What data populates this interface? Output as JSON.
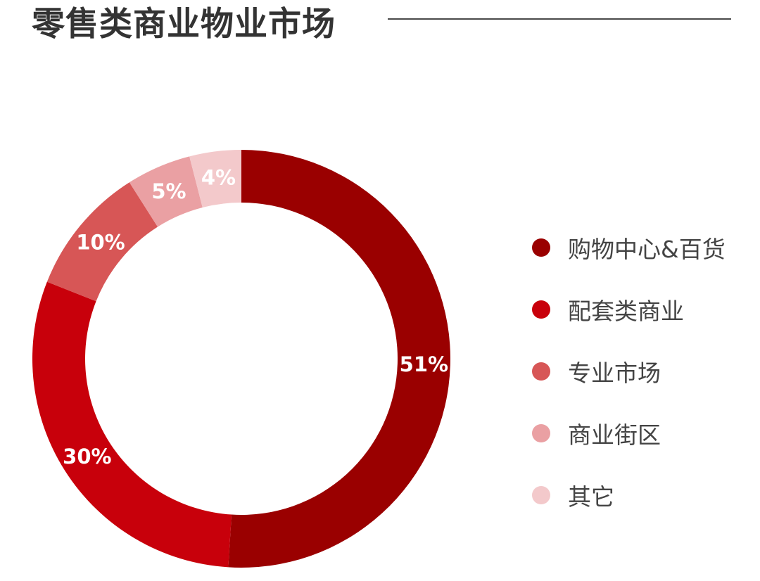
{
  "title": "零售类商业物业市场",
  "chart_data": {
    "type": "pie",
    "categories": [
      "购物中心&百货",
      "配套类商业",
      "专业市场",
      "商业街区",
      "其它"
    ],
    "values": [
      51,
      30,
      10,
      5,
      4
    ],
    "data_labels": [
      "51%",
      "30%",
      "10%",
      "5%",
      "4%"
    ],
    "colors": [
      "#9a0000",
      "#c8000b",
      "#d75656",
      "#eaa0a3",
      "#f3c9cb"
    ],
    "legend_position": "right",
    "donut": true
  }
}
